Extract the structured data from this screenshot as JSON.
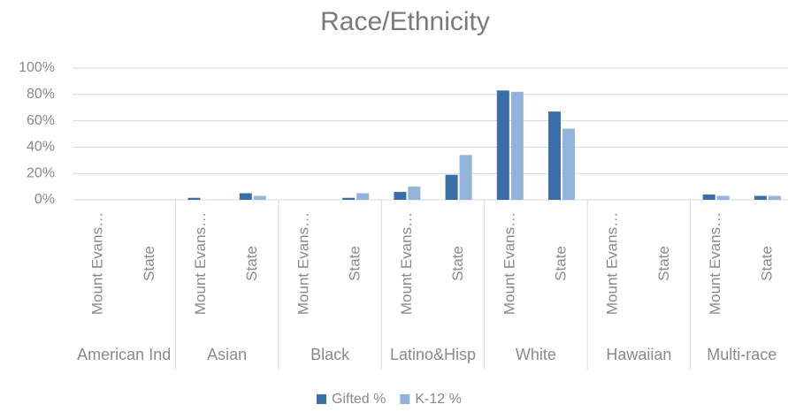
{
  "chart_data": {
    "type": "bar",
    "title": "Race/Ethnicity",
    "category_groups": [
      "American Ind",
      "Asian",
      "Black",
      "Latino&Hisp",
      "White",
      "Hawaiian",
      "Multi-race"
    ],
    "categories": [
      "Mount Evans…",
      "State",
      "Mount Evans…",
      "State",
      "Mount Evans…",
      "State",
      "Mount Evans…",
      "State",
      "Mount Evans…",
      "State",
      "Mount Evans…",
      "State",
      "Mount Evans…",
      "State"
    ],
    "series": [
      {
        "name": "Gifted %",
        "color": "#3a6ea8",
        "values": [
          0,
          0,
          1.5,
          5,
          0,
          1.5,
          6,
          19,
          83,
          67,
          0,
          0,
          4,
          3
        ]
      },
      {
        "name": "K-12 %",
        "color": "#93b3dd",
        "values": [
          0,
          0,
          0,
          3,
          0,
          5,
          10,
          34,
          82,
          54,
          0,
          0,
          3,
          3
        ]
      }
    ],
    "ylim": [
      0,
      100
    ],
    "yticks": [
      {
        "value": 0,
        "label": "0%"
      },
      {
        "value": 20,
        "label": "20%"
      },
      {
        "value": 40,
        "label": "40%"
      },
      {
        "value": 60,
        "label": "60%"
      },
      {
        "value": 80,
        "label": "80%"
      },
      {
        "value": 100,
        "label": "100%"
      }
    ],
    "grid": true,
    "legend": "bottom"
  }
}
